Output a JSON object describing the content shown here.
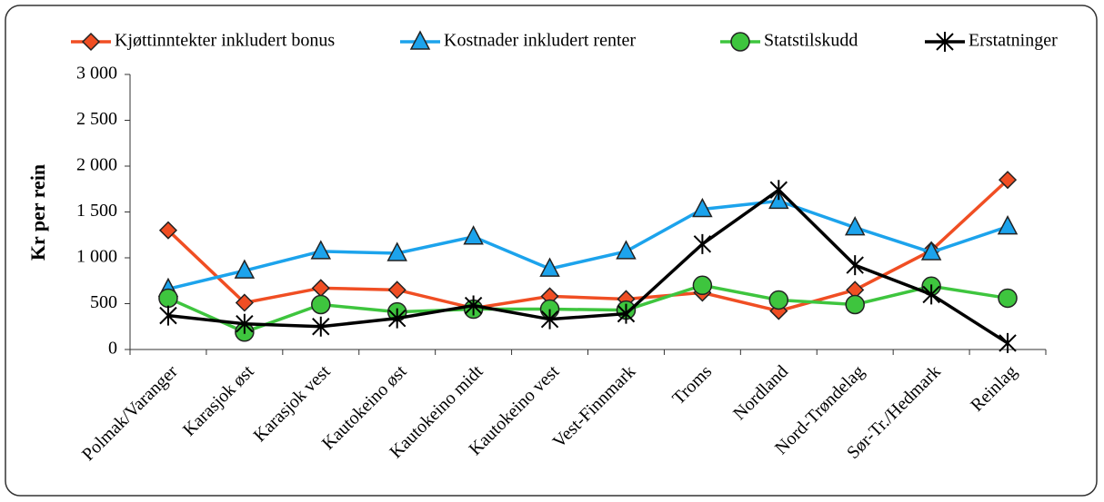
{
  "chart_data": {
    "type": "line",
    "ylabel": "Kr per rein",
    "categories": [
      "Polmak/Varanger",
      "Karasjok øst",
      "Karasjok vest",
      "Kautokeino øst",
      "Kautokeino midt",
      "Kautokeino vest",
      "Vest-Finnmark",
      "Troms",
      "Nordland",
      "Nord-Trøndelag",
      "Sør-Tr./Hedmark",
      "Reinlag"
    ],
    "series": [
      {
        "name": "Kjøttinntekter inkludert bonus",
        "color": "#f04e23",
        "marker": "diamond",
        "values": [
          1300,
          510,
          670,
          650,
          450,
          580,
          550,
          620,
          420,
          650,
          1080,
          1850
        ]
      },
      {
        "name": "Kostnader inkludert renter",
        "color": "#1ca3ec",
        "marker": "triangle",
        "values": [
          660,
          860,
          1070,
          1050,
          1230,
          880,
          1070,
          1530,
          1620,
          1330,
          1060,
          1340
        ]
      },
      {
        "name": "Statstilskudd",
        "color": "#3ec53e",
        "marker": "circle",
        "values": [
          560,
          190,
          490,
          410,
          440,
          440,
          430,
          700,
          540,
          490,
          690,
          560
        ]
      },
      {
        "name": "Erstatninger",
        "color": "#000000",
        "marker": "star",
        "values": [
          370,
          280,
          250,
          340,
          480,
          330,
          390,
          1150,
          1740,
          920,
          600,
          70
        ]
      }
    ],
    "ylim": [
      0,
      3000
    ],
    "yticks": [
      0,
      500,
      {
        "value": 1000,
        "label": "1 000"
      },
      {
        "value": 1500,
        "label": "1 500"
      },
      {
        "value": 2000,
        "label": "2 000"
      },
      {
        "value": 2500,
        "label": "2 500"
      },
      {
        "value": 3000,
        "label": "3 000"
      }
    ],
    "legend": "top"
  }
}
